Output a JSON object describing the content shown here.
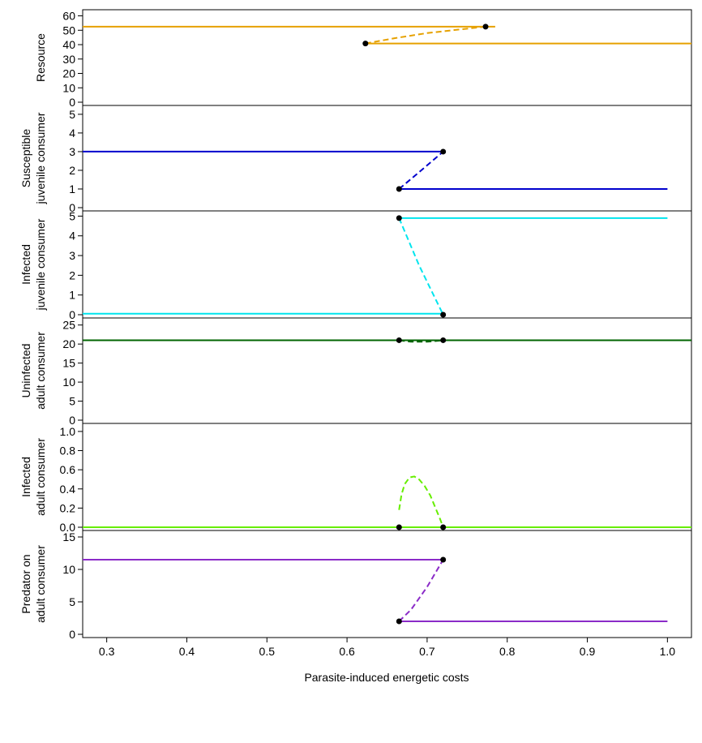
{
  "chart_data": {
    "type": "line",
    "xlabel": "Parasite-induced energetic costs",
    "xlim": [
      0.27,
      1.03
    ],
    "xticks": [
      0.3,
      0.4,
      0.5,
      0.6,
      0.7,
      0.8,
      0.9,
      1.0
    ],
    "xtick_labels": [
      "0.3",
      "0.4",
      "0.5",
      "0.6",
      "0.7",
      "0.8",
      "0.9",
      "1.0"
    ],
    "panels": [
      {
        "ylabel": [
          "Resource"
        ],
        "ylim": [
          0,
          62
        ],
        "yticks": [
          0,
          10,
          20,
          30,
          40,
          50,
          60
        ],
        "color": "#E6A100",
        "solid": [
          {
            "x": [
              0.27,
              0.785
            ],
            "y": [
              52.5,
              52.5
            ]
          },
          {
            "x": [
              0.623,
              1.03
            ],
            "y": [
              40.8,
              40.8
            ]
          }
        ],
        "dashed": [
          {
            "x": [
              0.623,
              0.66,
              0.7,
              0.74,
              0.773
            ],
            "y": [
              40.8,
              44.5,
              48.0,
              50.5,
              52.5
            ]
          }
        ],
        "points": [
          {
            "x": 0.623,
            "y": 40.8
          },
          {
            "x": 0.773,
            "y": 52.5
          }
        ]
      },
      {
        "ylabel": [
          "Susceptible",
          "juvenile consumer"
        ],
        "ylim": [
          0,
          5.3
        ],
        "yticks": [
          0,
          1,
          2,
          3,
          4,
          5
        ],
        "color": "#0000CD",
        "solid": [
          {
            "x": [
              0.27,
              0.72
            ],
            "y": [
              3.0,
              3.0
            ]
          },
          {
            "x": [
              0.665,
              1.0
            ],
            "y": [
              1.0,
              1.0
            ]
          }
        ],
        "dashed": [
          {
            "x": [
              0.665,
              0.69,
              0.72
            ],
            "y": [
              1.0,
              1.9,
              3.0
            ]
          }
        ],
        "points": [
          {
            "x": 0.665,
            "y": 1.0
          },
          {
            "x": 0.72,
            "y": 3.0
          }
        ]
      },
      {
        "ylabel": [
          "Infected",
          "juvenile consumer"
        ],
        "ylim": [
          0,
          5.1
        ],
        "yticks": [
          0,
          1,
          2,
          3,
          4,
          5
        ],
        "color": "#00E5EE",
        "solid": [
          {
            "x": [
              0.27,
              0.72
            ],
            "y": [
              0.05,
              0.05
            ]
          },
          {
            "x": [
              0.665,
              1.0
            ],
            "y": [
              4.9,
              4.9
            ]
          }
        ],
        "dashed": [
          {
            "x": [
              0.665,
              0.69,
              0.72
            ],
            "y": [
              4.9,
              2.5,
              0.0
            ]
          }
        ],
        "points": [
          {
            "x": 0.665,
            "y": 4.9
          },
          {
            "x": 0.72,
            "y": 0.0
          }
        ]
      },
      {
        "ylabel": [
          "Uninfected",
          "adult consumer"
        ],
        "ylim": [
          0,
          26
        ],
        "yticks": [
          0,
          5,
          10,
          15,
          20,
          25
        ],
        "color": "#006400",
        "solid": [
          {
            "x": [
              0.27,
              1.03
            ],
            "y": [
              21.0,
              21.0
            ]
          }
        ],
        "dashed": [
          {
            "x": [
              0.665,
              0.68,
              0.7,
              0.72
            ],
            "y": [
              21.0,
              20.6,
              20.6,
              21.0
            ]
          }
        ],
        "points": [
          {
            "x": 0.665,
            "y": 21.0
          },
          {
            "x": 0.72,
            "y": 21.0
          }
        ]
      },
      {
        "ylabel": [
          "Infected",
          "adult consumer"
        ],
        "ylim": [
          0,
          1.05
        ],
        "yticks": [
          0,
          0.2,
          0.4,
          0.6,
          0.8,
          1.0
        ],
        "ytick_labels": [
          "0.0",
          "0.2",
          "0.4",
          "0.6",
          "0.8",
          "1.0"
        ],
        "color": "#66EE00",
        "solid": [
          {
            "x": [
              0.27,
              1.03
            ],
            "y": [
              0.0,
              0.0
            ]
          }
        ],
        "dashed": [
          {
            "x": [
              0.665,
              0.668,
              0.672,
              0.678,
              0.684,
              0.69,
              0.697,
              0.704,
              0.71,
              0.716,
              0.72
            ],
            "y": [
              0.18,
              0.34,
              0.45,
              0.52,
              0.53,
              0.5,
              0.43,
              0.33,
              0.21,
              0.09,
              0.0
            ]
          }
        ],
        "points": [
          {
            "x": 0.665,
            "y": 0.0
          },
          {
            "x": 0.72,
            "y": 0.0
          }
        ]
      },
      {
        "ylabel": [
          "Predator on",
          "adult consumer"
        ],
        "ylim": [
          0,
          15.5
        ],
        "yticks": [
          0,
          5,
          10,
          15
        ],
        "color": "#8B2BC8",
        "solid": [
          {
            "x": [
              0.27,
              0.72
            ],
            "y": [
              11.5,
              11.5
            ]
          },
          {
            "x": [
              0.665,
              1.0
            ],
            "y": [
              2.0,
              2.0
            ]
          }
        ],
        "dashed": [
          {
            "x": [
              0.665,
              0.68,
              0.7,
              0.72
            ],
            "y": [
              2.0,
              3.8,
              7.3,
              11.5
            ]
          }
        ],
        "points": [
          {
            "x": 0.665,
            "y": 2.0
          },
          {
            "x": 0.72,
            "y": 11.5
          }
        ]
      }
    ]
  }
}
